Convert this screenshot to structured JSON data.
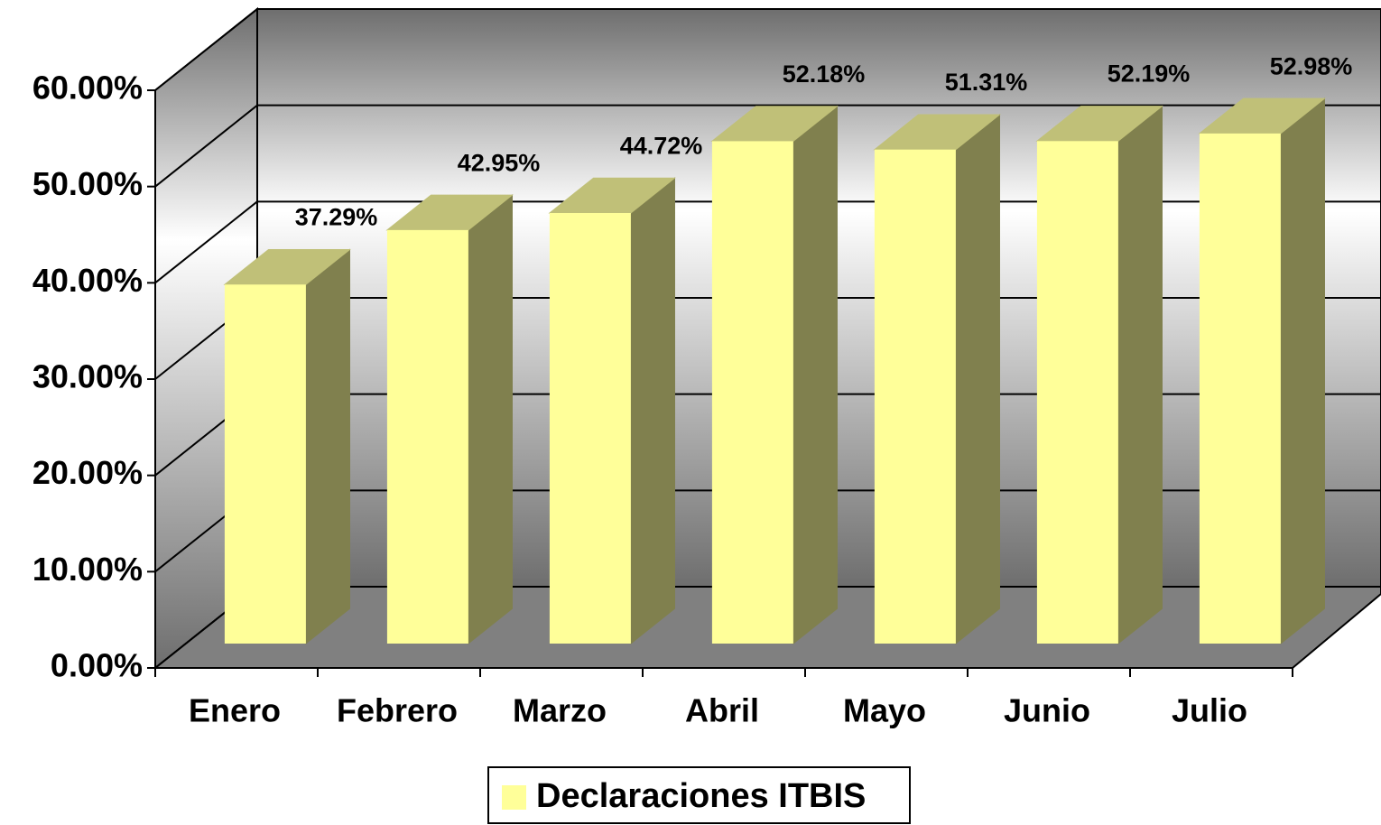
{
  "chart_data": {
    "type": "bar3d",
    "categories": [
      "Enero",
      "Febrero",
      "Marzo",
      "Abril",
      "Mayo",
      "Junio",
      "Julio"
    ],
    "series": [
      {
        "name": "Declaraciones ITBIS",
        "color": "#ffff99",
        "values": [
          37.29,
          42.95,
          44.72,
          52.18,
          51.31,
          52.19,
          52.98
        ],
        "value_labels": [
          "37.29%",
          "42.95%",
          "44.72%",
          "52.18%",
          "51.31%",
          "52.19%",
          "52.98%"
        ]
      }
    ],
    "ylim": [
      0,
      60
    ],
    "yticks": [
      {
        "value": 0,
        "label": "0.00%"
      },
      {
        "value": 10,
        "label": "10.00%"
      },
      {
        "value": 20,
        "label": "20.00%"
      },
      {
        "value": 30,
        "label": "30.00%"
      },
      {
        "value": 40,
        "label": "40.00%"
      },
      {
        "value": 50,
        "label": "50.00%"
      },
      {
        "value": 60,
        "label": "60.00%"
      }
    ],
    "grid": true,
    "legend": "bottom"
  }
}
